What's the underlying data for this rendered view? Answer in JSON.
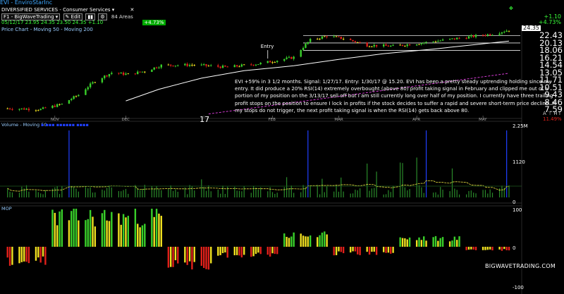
{
  "window": {
    "title": "EVI - EnviroStarInc",
    "sector": "DIVERSIFIED SERVICES - Consumer Services",
    "layout_name": "F1 - BigWaveTrading",
    "edit_label": "Edit",
    "areas_label": "84 Areas",
    "quote_line": "05/12/17  23.95  24.35  23.50  24.35  +1.10",
    "change_badge": "+4.73%",
    "overlay_legend": "Price Chart - Moving 50 - Moving 200"
  },
  "right_header": {
    "change": "+1.10",
    "change_pct": "+4.73%",
    "last_price": "24.35",
    "small_pct": "11.49%"
  },
  "price_axis": [
    "22.43",
    "20.13",
    "18.06",
    "16.21",
    "14.54",
    "13.05",
    "11.71",
    "10.51",
    "9.43",
    "8.46",
    "7.59"
  ],
  "time_axis": [
    "NOV",
    "DEC",
    "17",
    "FEB",
    "MAR",
    "APR",
    "MAY"
  ],
  "entry_label": "Entry",
  "volume_panel": {
    "title": "Volume - Moving 50",
    "axis": [
      "2.25M",
      "1120",
      "0"
    ]
  },
  "indicator_panel": {
    "title": "MOP",
    "axis": [
      "100",
      "0",
      "-100"
    ]
  },
  "commentary": "EVI +59% in 3 1/2 months. Signal: 1/27/17. Entry: 1/30/17 @ 15.20. EVI has been a pretty steady uptrending holding since my entry. It did produce a 20% RSI(14) extremely overbought (above 80) profit taking signal in February and clipped me out of a portion of my position on the 3/13/17 sell off but I am still currently long over half of my position. I currently have three trailing profit stops on the position to ensure I lock in profits if the stock decides to suffer a rapid and severe short-term price decline. If my stops do not trigger, the next profit taking signal is when the RSI(14) gets back above 80.",
  "watermark": "BIGWAVETRADING.COM",
  "colors": {
    "up": "#39d02a",
    "down": "#e0201a",
    "neutral": "#f0e020",
    "ma50": "#ffffff",
    "ma200": "#d23ad2",
    "volume_spike": "#2040ff",
    "volume_bar": "#2a8a2a",
    "volume_ma": "#e8e040",
    "grid_line": "#1e5a1e"
  },
  "chart_data": [
    {
      "type": "candlestick",
      "name": "EVI daily price",
      "x_range": [
        "2016-10-10",
        "2017-05-12"
      ],
      "y_scale": "log",
      "ylim": [
        7.0,
        25.0
      ],
      "key_points": [
        {
          "date": "2016-10-12",
          "close": 7.7
        },
        {
          "date": "2016-10-26",
          "close": 7.6
        },
        {
          "date": "2016-11-04",
          "close": 8.2
        },
        {
          "date": "2016-11-11",
          "close": 9.4
        },
        {
          "date": "2016-11-18",
          "close": 11.5
        },
        {
          "date": "2016-11-25",
          "close": 13.0
        },
        {
          "date": "2016-12-02",
          "close": 12.7
        },
        {
          "date": "2016-12-09",
          "close": 13.3
        },
        {
          "date": "2016-12-16",
          "close": 14.5
        },
        {
          "date": "2016-12-30",
          "close": 14.6
        },
        {
          "date": "2017-01-13",
          "close": 14.1
        },
        {
          "date": "2017-01-27",
          "close": 14.9
        },
        {
          "date": "2017-01-30",
          "close": 15.2
        },
        {
          "date": "2017-02-10",
          "close": 16.3
        },
        {
          "date": "2017-02-17",
          "close": 21.0
        },
        {
          "date": "2017-02-24",
          "close": 22.3
        },
        {
          "date": "2017-03-03",
          "close": 21.5
        },
        {
          "date": "2017-03-13",
          "close": 19.5
        },
        {
          "date": "2017-03-24",
          "close": 19.2
        },
        {
          "date": "2017-04-07",
          "close": 20.3
        },
        {
          "date": "2017-04-21",
          "close": 21.6
        },
        {
          "date": "2017-05-05",
          "close": 23.0
        },
        {
          "date": "2017-05-12",
          "close": 24.35
        }
      ],
      "ma50_points": [
        {
          "date": "2016-12-01",
          "value": 8.6
        },
        {
          "date": "2016-12-15",
          "value": 10.2
        },
        {
          "date": "2017-01-02",
          "value": 12.0
        },
        {
          "date": "2017-01-20",
          "value": 13.4
        },
        {
          "date": "2017-02-10",
          "value": 14.4
        },
        {
          "date": "2017-03-01",
          "value": 15.8
        },
        {
          "date": "2017-03-20",
          "value": 17.2
        },
        {
          "date": "2017-04-10",
          "value": 18.4
        },
        {
          "date": "2017-05-12",
          "value": 20.7
        }
      ],
      "ma200_points": [
        {
          "date": "2017-01-05",
          "value": 7.1
        },
        {
          "date": "2017-03-15",
          "value": 9.8
        },
        {
          "date": "2017-05-12",
          "value": 12.9
        }
      ],
      "annotations": [
        {
          "text": "Entry",
          "date": "2017-01-30",
          "price": 15.2
        }
      ]
    },
    {
      "type": "bar",
      "name": "Volume",
      "axis_labels": [
        "2.25M",
        "1120",
        "0"
      ],
      "spikes": [
        {
          "date": "2016-11-07"
        },
        {
          "date": "2017-02-16"
        },
        {
          "date": "2017-04-07"
        },
        {
          "date": "2017-05-11"
        }
      ]
    },
    {
      "type": "bar",
      "name": "MOP",
      "ylim": [
        -100,
        100
      ],
      "segments": [
        {
          "from": "2016-10-10",
          "to": "2016-10-28",
          "approx_value": -45
        },
        {
          "from": "2016-10-31",
          "to": "2016-12-16",
          "approx_value": 92
        },
        {
          "from": "2016-12-19",
          "to": "2017-01-06",
          "approx_value": -55
        },
        {
          "from": "2017-01-09",
          "to": "2017-02-03",
          "approx_value": -25
        },
        {
          "from": "2017-02-06",
          "to": "2017-02-24",
          "approx_value": 35
        },
        {
          "from": "2017-02-27",
          "to": "2017-03-24",
          "approx_value": -20
        },
        {
          "from": "2017-03-27",
          "to": "2017-04-21",
          "approx_value": 25
        },
        {
          "from": "2017-04-24",
          "to": "2017-05-12",
          "approx_value": -10
        }
      ]
    }
  ]
}
